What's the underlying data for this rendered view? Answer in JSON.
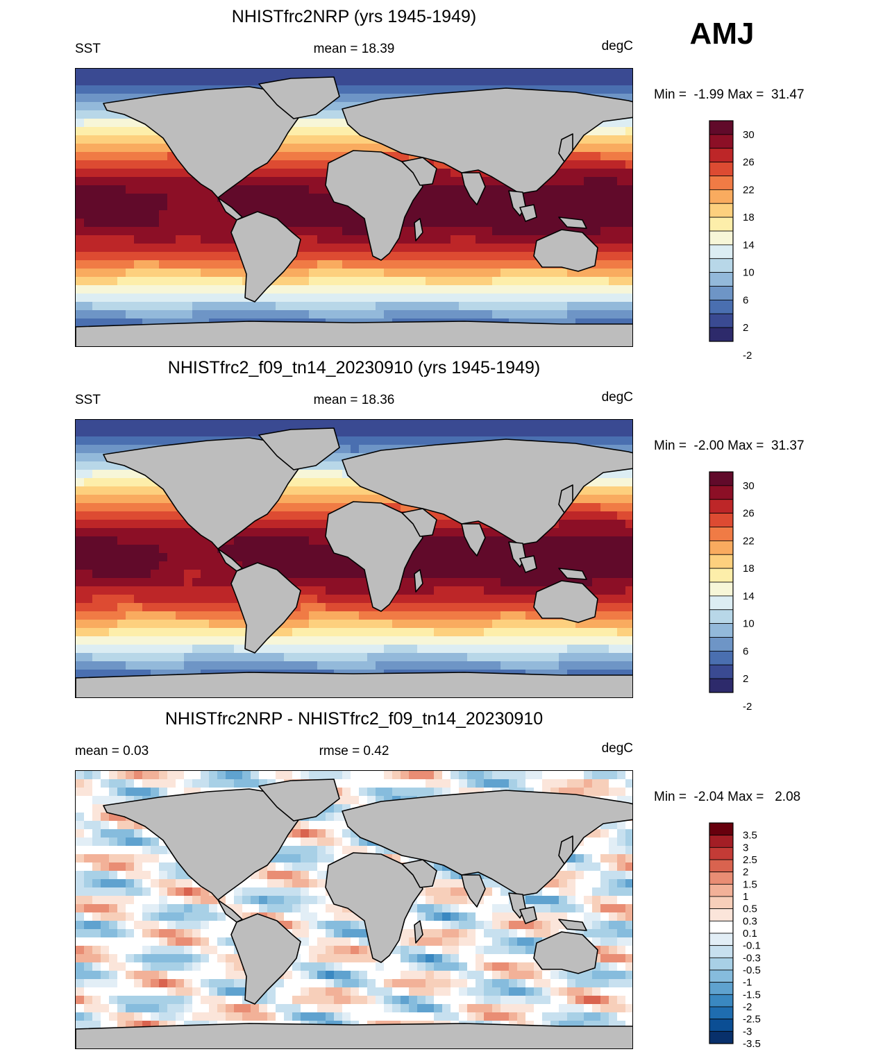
{
  "season": "AMJ",
  "colors": {
    "land": "#bdbdbd",
    "coast": "#000000",
    "sst_scale": [
      "#2d2a6b",
      "#3a4a92",
      "#4a6fb0",
      "#6e95c6",
      "#93b9da",
      "#b8d7e8",
      "#dcedf3",
      "#f7f6d8",
      "#fdeeaa",
      "#fdd07e",
      "#f9ab5f",
      "#f07b45",
      "#dd4b32",
      "#bd2628",
      "#8c0f26",
      "#610a2a"
    ],
    "diff_scale": [
      "#08306b",
      "#0b4e94",
      "#1f6db0",
      "#3a88c1",
      "#5fa2cf",
      "#86bcdd",
      "#a8d0e6",
      "#c7e0ef",
      "#e2eef6",
      "#ffffff",
      "#fbe5da",
      "#f7cfba",
      "#f2b198",
      "#e98d74",
      "#d9634f",
      "#c43b36",
      "#a31e25",
      "#67000d"
    ]
  },
  "panels": [
    {
      "title": "NHISTfrc2NRP (yrs 1945-1949)",
      "left_label": "SST",
      "center_label": "mean =  18.39",
      "right_label": "degC",
      "minmax": "Min =  -1.99 Max =  31.47",
      "scale": "sst",
      "colorbar_labels": [
        "30",
        "26",
        "22",
        "18",
        "14",
        "10",
        "6",
        "2",
        "-2"
      ]
    },
    {
      "title": "NHISTfrc2_f09_tn14_20230910 (yrs 1945-1949)",
      "left_label": "SST",
      "center_label": "mean =  18.36",
      "right_label": "degC",
      "minmax": "Min =  -2.00 Max =  31.37",
      "scale": "sst",
      "colorbar_labels": [
        "30",
        "26",
        "22",
        "18",
        "14",
        "10",
        "6",
        "2",
        "-2"
      ]
    },
    {
      "title": "NHISTfrc2NRP - NHISTfrc2_f09_tn14_20230910",
      "left_label": "mean =   0.03",
      "center_label": "rmse =   0.42",
      "right_label": "degC",
      "minmax": "Min =  -2.04 Max =   2.08",
      "scale": "diff",
      "colorbar_labels": [
        "3.5",
        "3",
        "2.5",
        "2",
        "1.5",
        "1",
        "0.5",
        "0.3",
        "0.1",
        "-0.1",
        "-0.3",
        "-0.5",
        "-1",
        "-1.5",
        "-2",
        "-2.5",
        "-3",
        "-3.5"
      ]
    }
  ]
}
